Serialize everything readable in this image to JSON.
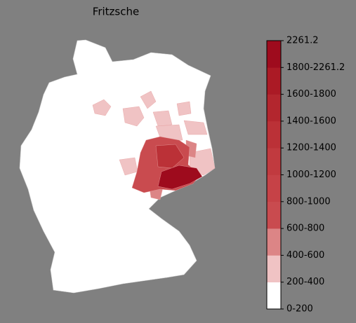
{
  "title": "Fritzsche",
  "legend": {
    "labels": [
      "0-200",
      "200-400",
      "400-600",
      "600-800",
      "800-1000",
      "1000-1200",
      "1200-1400",
      "1400-1600",
      "1600-1800",
      "1800-2261.2",
      "2261.2"
    ],
    "colors": [
      "#ffffff",
      "#f0c3c4",
      "#dc8586",
      "#c94b4f",
      "#c64247",
      "#c13a3f",
      "#bb3137",
      "#b3262e",
      "#ab1a25",
      "#9e0b1d"
    ]
  }
}
